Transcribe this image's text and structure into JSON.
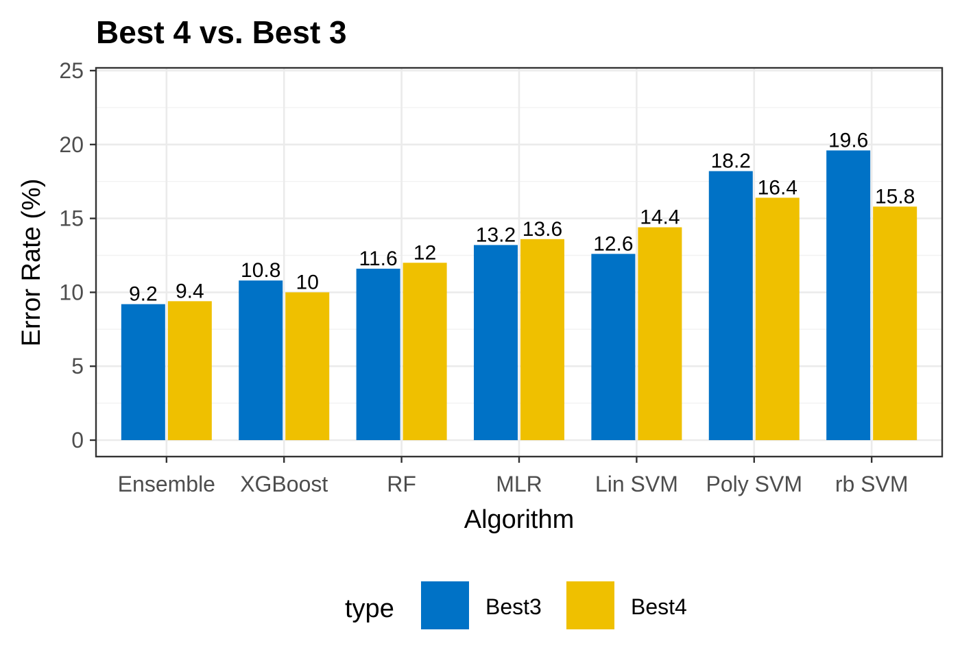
{
  "chart_data": {
    "type": "bar",
    "title": "Best 4 vs. Best 3",
    "xlabel": "Algorithm",
    "ylabel": "Error Rate (%)",
    "categories": [
      "Ensemble",
      "XGBoost",
      "RF",
      "MLR",
      "Lin SVM",
      "Poly SVM",
      "rb SVM"
    ],
    "series": [
      {
        "name": "Best3",
        "color": "#0072C6",
        "values": [
          9.2,
          10.8,
          11.6,
          13.2,
          12.6,
          18.2,
          19.6
        ]
      },
      {
        "name": "Best4",
        "color": "#EFC000",
        "values": [
          9.4,
          10,
          12,
          13.6,
          14.4,
          16.4,
          15.8
        ]
      }
    ],
    "ylim": [
      0,
      25
    ],
    "yticks": [
      0,
      5,
      10,
      15,
      20,
      25
    ],
    "grid": true,
    "legend": {
      "title": "type",
      "position": "bottom"
    },
    "data_labels": true
  }
}
